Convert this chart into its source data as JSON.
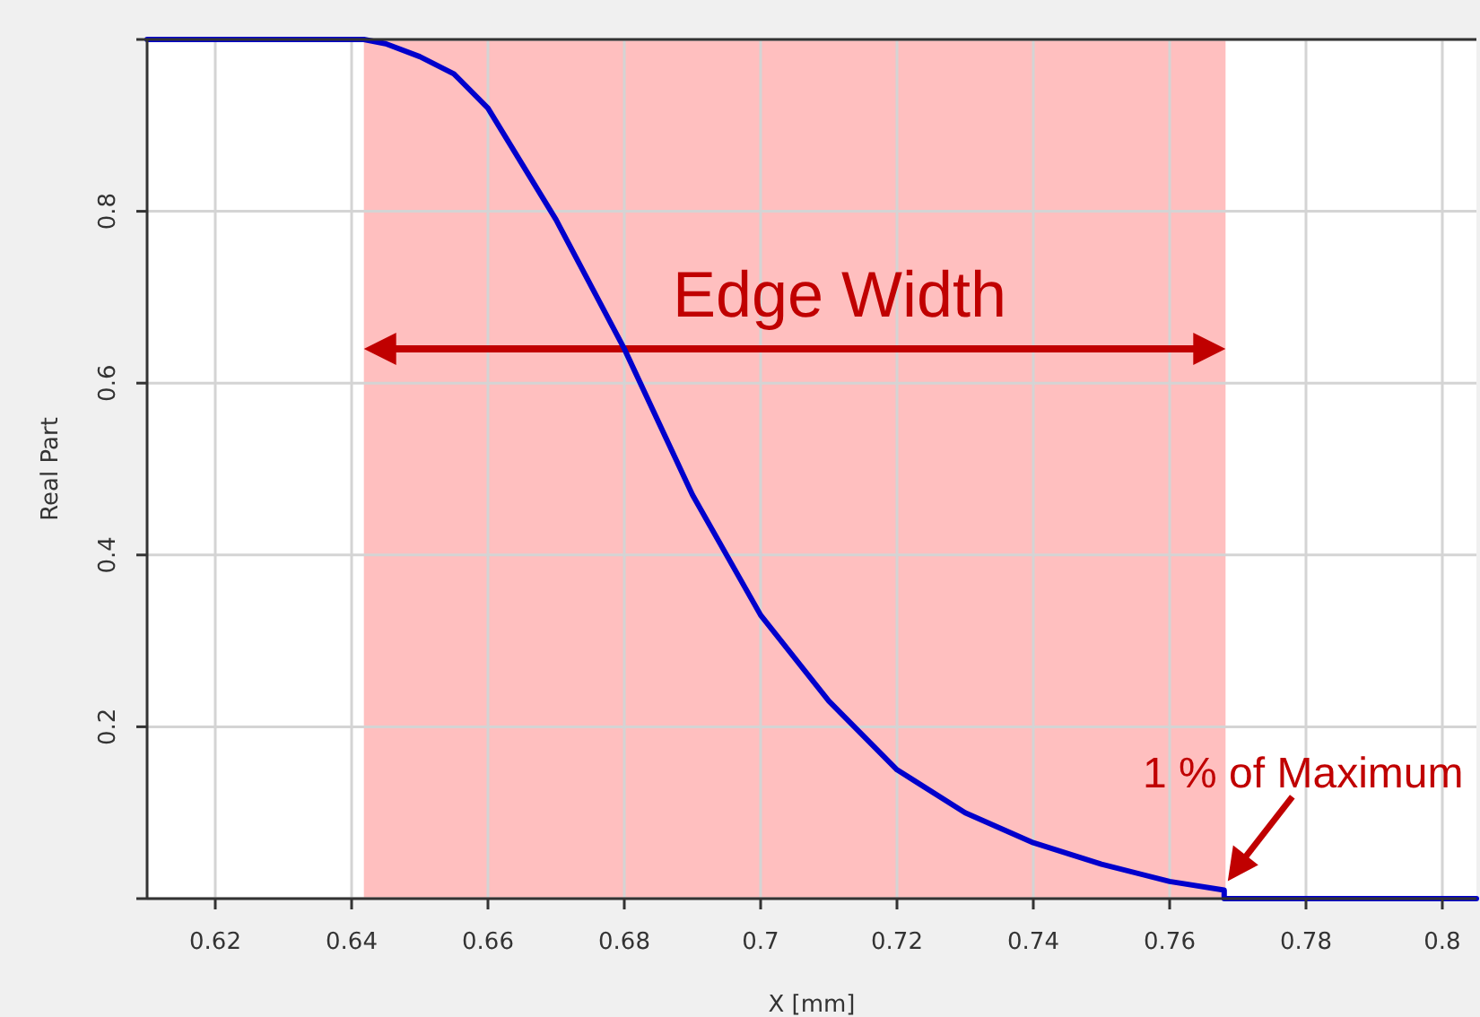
{
  "chart_data": {
    "type": "line",
    "xlabel": "X [mm]",
    "ylabel": "Real Part",
    "xlim": [
      0.61,
      0.805
    ],
    "ylim": [
      0,
      1
    ],
    "xticks": [
      0.62,
      0.64,
      0.66,
      0.68,
      0.7,
      0.72,
      0.74,
      0.76,
      0.78,
      0.8
    ],
    "yticks": [
      {
        "value": 0,
        "label": null
      },
      0.2,
      0.4,
      0.6,
      0.8,
      {
        "value": 1,
        "label": null
      }
    ],
    "grid": true,
    "marker": "none",
    "line_style": "solid",
    "series": [
      {
        "color": "#0000cc",
        "x": [
          0.61,
          0.6418,
          0.645,
          0.65,
          0.655,
          0.66,
          0.67,
          0.68,
          0.69,
          0.7,
          0.71,
          0.72,
          0.73,
          0.74,
          0.75,
          0.76,
          0.768,
          0.768,
          0.805
        ],
        "values": [
          1,
          1,
          0.995,
          0.98,
          0.96,
          0.92,
          0.79,
          0.64,
          0.47,
          0.33,
          0.23,
          0.15,
          0.1,
          0.065,
          0.04,
          0.02,
          0.01,
          0,
          0
        ]
      }
    ],
    "bands": [
      {
        "axis": "x",
        "from": 0.6418,
        "to": 0.7682,
        "label": "Edge Width",
        "color": "#ffbfbf"
      }
    ],
    "annotations": [
      {
        "text": "1 % of Maximum",
        "x": 0.768,
        "y": 0.01
      }
    ]
  }
}
